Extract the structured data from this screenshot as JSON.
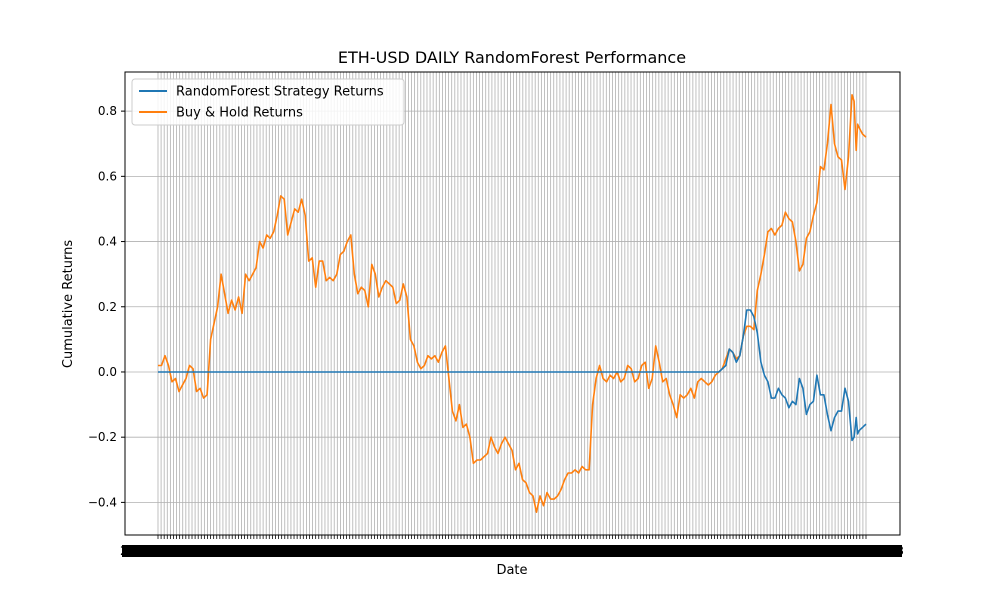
{
  "chart_data": {
    "type": "line",
    "title": "ETH-USD DAILY RandomForest Performance",
    "xlabel": "Date",
    "ylabel": "Cumulative Returns",
    "ylim": [
      -0.5,
      0.92
    ],
    "yticks": [
      -0.4,
      -0.2,
      0.0,
      0.2,
      0.4,
      0.6,
      0.8
    ],
    "ytick_labels": [
      "−0.4",
      "−0.2",
      "0.0",
      "0.2",
      "0.4",
      "0.6",
      "0.8"
    ],
    "x_tick_labels_visible": [
      "2023",
      "2024-01-13"
    ],
    "grid": true,
    "legend": "upper-left",
    "series": [
      {
        "name": "RandomForest Strategy Returns",
        "color": "#1f77b4",
        "points": [
          [
            0,
            0
          ],
          [
            0.8,
            0
          ],
          [
            0.81,
            0.02
          ],
          [
            0.815,
            0.07
          ],
          [
            0.82,
            0.06
          ],
          [
            0.825,
            0.03
          ],
          [
            0.83,
            0.05
          ],
          [
            0.835,
            0.11
          ],
          [
            0.84,
            0.19
          ],
          [
            0.845,
            0.19
          ],
          [
            0.85,
            0.17
          ],
          [
            0.855,
            0.12
          ],
          [
            0.86,
            0.03
          ],
          [
            0.865,
            -0.01
          ],
          [
            0.87,
            -0.03
          ],
          [
            0.875,
            -0.08
          ],
          [
            0.88,
            -0.08
          ],
          [
            0.885,
            -0.05
          ],
          [
            0.89,
            -0.07
          ],
          [
            0.895,
            -0.08
          ],
          [
            0.9,
            -0.11
          ],
          [
            0.905,
            -0.09
          ],
          [
            0.91,
            -0.1
          ],
          [
            0.915,
            -0.02
          ],
          [
            0.92,
            -0.05
          ],
          [
            0.925,
            -0.13
          ],
          [
            0.93,
            -0.1
          ],
          [
            0.935,
            -0.09
          ],
          [
            0.94,
            -0.01
          ],
          [
            0.945,
            -0.07
          ],
          [
            0.95,
            -0.07
          ],
          [
            0.955,
            -0.13
          ],
          [
            0.96,
            -0.18
          ],
          [
            0.965,
            -0.14
          ],
          [
            0.97,
            -0.12
          ],
          [
            0.975,
            -0.12
          ],
          [
            0.98,
            -0.05
          ],
          [
            0.985,
            -0.09
          ],
          [
            0.99,
            -0.21
          ],
          [
            0.993,
            -0.2
          ],
          [
            0.996,
            -0.14
          ],
          [
            0.998,
            -0.19
          ],
          [
            1.0,
            -0.18
          ],
          [
            1.005,
            -0.17
          ],
          [
            1.01,
            -0.16
          ]
        ]
      },
      {
        "name": "Buy & Hold Returns",
        "color": "#ff7f0e",
        "points": [
          [
            0,
            0.02
          ],
          [
            0.005,
            0.02
          ],
          [
            0.01,
            0.05
          ],
          [
            0.015,
            0.02
          ],
          [
            0.02,
            -0.03
          ],
          [
            0.025,
            -0.02
          ],
          [
            0.03,
            -0.06
          ],
          [
            0.035,
            -0.04
          ],
          [
            0.04,
            -0.02
          ],
          [
            0.045,
            0.02
          ],
          [
            0.05,
            0.01
          ],
          [
            0.055,
            -0.06
          ],
          [
            0.06,
            -0.05
          ],
          [
            0.065,
            -0.08
          ],
          [
            0.07,
            -0.07
          ],
          [
            0.075,
            0.1
          ],
          [
            0.08,
            0.15
          ],
          [
            0.085,
            0.2
          ],
          [
            0.09,
            0.3
          ],
          [
            0.095,
            0.24
          ],
          [
            0.1,
            0.18
          ],
          [
            0.105,
            0.22
          ],
          [
            0.11,
            0.19
          ],
          [
            0.115,
            0.23
          ],
          [
            0.12,
            0.18
          ],
          [
            0.125,
            0.3
          ],
          [
            0.13,
            0.28
          ],
          [
            0.135,
            0.3
          ],
          [
            0.14,
            0.32
          ],
          [
            0.145,
            0.4
          ],
          [
            0.15,
            0.38
          ],
          [
            0.155,
            0.42
          ],
          [
            0.16,
            0.41
          ],
          [
            0.165,
            0.43
          ],
          [
            0.17,
            0.48
          ],
          [
            0.175,
            0.54
          ],
          [
            0.18,
            0.53
          ],
          [
            0.185,
            0.42
          ],
          [
            0.19,
            0.46
          ],
          [
            0.195,
            0.5
          ],
          [
            0.2,
            0.49
          ],
          [
            0.205,
            0.53
          ],
          [
            0.21,
            0.48
          ],
          [
            0.215,
            0.34
          ],
          [
            0.22,
            0.35
          ],
          [
            0.225,
            0.26
          ],
          [
            0.23,
            0.34
          ],
          [
            0.235,
            0.34
          ],
          [
            0.24,
            0.28
          ],
          [
            0.245,
            0.29
          ],
          [
            0.25,
            0.28
          ],
          [
            0.255,
            0.3
          ],
          [
            0.26,
            0.36
          ],
          [
            0.265,
            0.37
          ],
          [
            0.27,
            0.4
          ],
          [
            0.275,
            0.42
          ],
          [
            0.28,
            0.3
          ],
          [
            0.285,
            0.24
          ],
          [
            0.29,
            0.26
          ],
          [
            0.295,
            0.25
          ],
          [
            0.3,
            0.2
          ],
          [
            0.305,
            0.33
          ],
          [
            0.31,
            0.3
          ],
          [
            0.315,
            0.23
          ],
          [
            0.32,
            0.26
          ],
          [
            0.325,
            0.28
          ],
          [
            0.33,
            0.27
          ],
          [
            0.335,
            0.26
          ],
          [
            0.34,
            0.21
          ],
          [
            0.345,
            0.22
          ],
          [
            0.35,
            0.27
          ],
          [
            0.355,
            0.23
          ],
          [
            0.36,
            0.1
          ],
          [
            0.365,
            0.08
          ],
          [
            0.37,
            0.03
          ],
          [
            0.375,
            0.01
          ],
          [
            0.38,
            0.02
          ],
          [
            0.385,
            0.05
          ],
          [
            0.39,
            0.04
          ],
          [
            0.395,
            0.05
          ],
          [
            0.4,
            0.03
          ],
          [
            0.405,
            0.06
          ],
          [
            0.41,
            0.08
          ],
          [
            0.415,
            -0.02
          ],
          [
            0.42,
            -0.12
          ],
          [
            0.425,
            -0.15
          ],
          [
            0.43,
            -0.1
          ],
          [
            0.435,
            -0.17
          ],
          [
            0.44,
            -0.16
          ],
          [
            0.445,
            -0.2
          ],
          [
            0.45,
            -0.28
          ],
          [
            0.455,
            -0.27
          ],
          [
            0.46,
            -0.27
          ],
          [
            0.465,
            -0.26
          ],
          [
            0.47,
            -0.25
          ],
          [
            0.475,
            -0.2
          ],
          [
            0.48,
            -0.23
          ],
          [
            0.485,
            -0.25
          ],
          [
            0.49,
            -0.22
          ],
          [
            0.495,
            -0.2
          ],
          [
            0.5,
            -0.22
          ],
          [
            0.505,
            -0.24
          ],
          [
            0.51,
            -0.3
          ],
          [
            0.515,
            -0.28
          ],
          [
            0.52,
            -0.33
          ],
          [
            0.525,
            -0.34
          ],
          [
            0.53,
            -0.37
          ],
          [
            0.535,
            -0.38
          ],
          [
            0.54,
            -0.43
          ],
          [
            0.545,
            -0.38
          ],
          [
            0.55,
            -0.41
          ],
          [
            0.555,
            -0.37
          ],
          [
            0.56,
            -0.39
          ],
          [
            0.565,
            -0.39
          ],
          [
            0.57,
            -0.38
          ],
          [
            0.575,
            -0.36
          ],
          [
            0.58,
            -0.33
          ],
          [
            0.585,
            -0.31
          ],
          [
            0.59,
            -0.31
          ],
          [
            0.595,
            -0.3
          ],
          [
            0.6,
            -0.31
          ],
          [
            0.605,
            -0.29
          ],
          [
            0.61,
            -0.3
          ],
          [
            0.615,
            -0.3
          ],
          [
            0.62,
            -0.1
          ],
          [
            0.625,
            -0.02
          ],
          [
            0.63,
            0.02
          ],
          [
            0.635,
            -0.02
          ],
          [
            0.64,
            -0.03
          ],
          [
            0.645,
            -0.01
          ],
          [
            0.65,
            -0.02
          ],
          [
            0.655,
            0.0
          ],
          [
            0.66,
            -0.03
          ],
          [
            0.665,
            -0.02
          ],
          [
            0.67,
            0.02
          ],
          [
            0.675,
            0.01
          ],
          [
            0.68,
            -0.03
          ],
          [
            0.685,
            -0.02
          ],
          [
            0.69,
            0.02
          ],
          [
            0.695,
            0.03
          ],
          [
            0.7,
            -0.05
          ],
          [
            0.705,
            -0.02
          ],
          [
            0.71,
            0.08
          ],
          [
            0.715,
            0.03
          ],
          [
            0.72,
            -0.03
          ],
          [
            0.725,
            -0.02
          ],
          [
            0.73,
            -0.07
          ],
          [
            0.735,
            -0.1
          ],
          [
            0.74,
            -0.14
          ],
          [
            0.745,
            -0.07
          ],
          [
            0.75,
            -0.08
          ],
          [
            0.755,
            -0.07
          ],
          [
            0.76,
            -0.05
          ],
          [
            0.765,
            -0.08
          ],
          [
            0.77,
            -0.03
          ],
          [
            0.775,
            -0.02
          ],
          [
            0.78,
            -0.03
          ],
          [
            0.785,
            -0.04
          ],
          [
            0.79,
            -0.03
          ],
          [
            0.795,
            -0.01
          ],
          [
            0.8,
            0.0
          ],
          [
            0.805,
            0.01
          ],
          [
            0.81,
            0.04
          ],
          [
            0.815,
            0.07
          ],
          [
            0.82,
            0.06
          ],
          [
            0.825,
            0.04
          ],
          [
            0.83,
            0.05
          ],
          [
            0.835,
            0.11
          ],
          [
            0.84,
            0.14
          ],
          [
            0.845,
            0.14
          ],
          [
            0.85,
            0.13
          ],
          [
            0.855,
            0.25
          ],
          [
            0.86,
            0.3
          ],
          [
            0.865,
            0.36
          ],
          [
            0.87,
            0.43
          ],
          [
            0.875,
            0.44
          ],
          [
            0.88,
            0.42
          ],
          [
            0.885,
            0.44
          ],
          [
            0.89,
            0.45
          ],
          [
            0.895,
            0.49
          ],
          [
            0.9,
            0.47
          ],
          [
            0.905,
            0.46
          ],
          [
            0.91,
            0.4
          ],
          [
            0.915,
            0.31
          ],
          [
            0.92,
            0.33
          ],
          [
            0.925,
            0.41
          ],
          [
            0.93,
            0.43
          ],
          [
            0.935,
            0.48
          ],
          [
            0.94,
            0.52
          ],
          [
            0.945,
            0.63
          ],
          [
            0.95,
            0.62
          ],
          [
            0.955,
            0.7
          ],
          [
            0.96,
            0.82
          ],
          [
            0.965,
            0.7
          ],
          [
            0.97,
            0.66
          ],
          [
            0.975,
            0.65
          ],
          [
            0.98,
            0.56
          ],
          [
            0.985,
            0.66
          ],
          [
            0.99,
            0.85
          ],
          [
            0.993,
            0.83
          ],
          [
            0.996,
            0.68
          ],
          [
            0.998,
            0.76
          ],
          [
            1.0,
            0.75
          ],
          [
            1.005,
            0.73
          ],
          [
            1.01,
            0.72
          ]
        ]
      }
    ]
  }
}
